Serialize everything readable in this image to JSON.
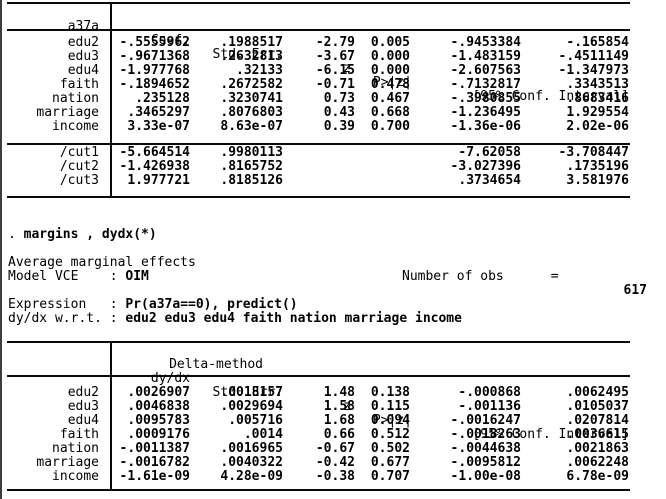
{
  "accent_colors": {
    "text": "#000000",
    "background": "#ffffff",
    "rule": "#0a0a0a",
    "window_border": "#3d3d3d"
  },
  "table1": {
    "depvar": "a37a",
    "col_headers": {
      "coef": "Coef.",
      "se": "Std. Err.",
      "z": "z",
      "p": "P>|z|",
      "ci": "[95% Conf. Interval]"
    },
    "rows": [
      {
        "label": "edu2",
        "coef": "-.5555962",
        "se": ".1988517",
        "z": "-2.79",
        "p": "0.005",
        "lo": "-.9453384",
        "hi": "-.165854"
      },
      {
        "label": "edu3",
        "coef": "-.9671368",
        "se": ".2632813",
        "z": "-3.67",
        "p": "0.000",
        "lo": "-1.483159",
        "hi": "-.4511149"
      },
      {
        "label": "edu4",
        "coef": "-1.977768",
        "se": ".32133",
        "z": "-6.15",
        "p": "0.000",
        "lo": "-2.607563",
        "hi": "-1.347973"
      },
      {
        "label": "faith",
        "coef": "-.1894652",
        "se": ".2672582",
        "z": "-0.71",
        "p": "0.478",
        "lo": "-.7132817",
        "hi": ".3343513"
      },
      {
        "label": "nation",
        "coef": ".235128",
        "se": ".3230741",
        "z": "0.73",
        "p": "0.467",
        "lo": "-.3980855",
        "hi": ".8683416"
      },
      {
        "label": "marriage",
        "coef": ".3465297",
        "se": ".8076803",
        "z": "0.43",
        "p": "0.668",
        "lo": "-1.236495",
        "hi": "1.929554"
      },
      {
        "label": "income",
        "coef": "3.33e-07",
        "se": "8.63e-07",
        "z": "0.39",
        "p": "0.700",
        "lo": "-1.36e-06",
        "hi": "2.02e-06"
      }
    ],
    "cut_rows": [
      {
        "label": "/cut1",
        "coef": "-5.664514",
        "se": ".9980113",
        "lo": "-7.62058",
        "hi": "-3.708447"
      },
      {
        "label": "/cut2",
        "coef": "-1.426938",
        "se": ".8165752",
        "lo": "-3.027396",
        "hi": ".1735196"
      },
      {
        "label": "/cut3",
        "coef": "1.977721",
        "se": ".8185126",
        "lo": ".3734654",
        "hi": "3.581976"
      }
    ]
  },
  "console": {
    "prompt": ". ",
    "command": "margins , dydx(*)",
    "avg_effects_label": "Average marginal effects",
    "obs_label": "Number of obs      =",
    "obs_value": "617",
    "vce_label": "Model VCE    : ",
    "vce_value": "OIM",
    "expression_label": "Expression   : ",
    "expression_value": "Pr(a37a==0), predict()",
    "wrt_label": "dy/dx w.r.t. : ",
    "wrt_value": "edu2 edu3 edu4 faith nation marriage income"
  },
  "table2": {
    "delta_label": "Delta-method",
    "col_headers": {
      "dydx": "dy/dx",
      "se": "Std. Err.",
      "z": "z",
      "p": "P>|z|",
      "ci": "[95% Conf. Interval]"
    },
    "rows": [
      {
        "label": "edu2",
        "coef": ".0026907",
        "se": ".0018157",
        "z": "1.48",
        "p": "0.138",
        "lo": "-.000868",
        "hi": ".0062495"
      },
      {
        "label": "edu3",
        "coef": ".0046838",
        "se": ".0029694",
        "z": "1.58",
        "p": "0.115",
        "lo": "-.001136",
        "hi": ".0105037"
      },
      {
        "label": "edu4",
        "coef": ".0095783",
        "se": ".005716",
        "z": "1.68",
        "p": "0.094",
        "lo": "-.0016247",
        "hi": ".0207814"
      },
      {
        "label": "faith",
        "coef": ".0009176",
        "se": ".0014",
        "z": "0.66",
        "p": "0.512",
        "lo": "-.0018263",
        "hi": ".0036615"
      },
      {
        "label": "nation",
        "coef": "-.0011387",
        "se": ".0016965",
        "z": "-0.67",
        "p": "0.502",
        "lo": "-.0044638",
        "hi": ".0021863"
      },
      {
        "label": "marriage",
        "coef": "-.0016782",
        "se": ".0040322",
        "z": "-0.42",
        "p": "0.677",
        "lo": "-.0095812",
        "hi": ".0062248"
      },
      {
        "label": "income",
        "coef": "-1.61e-09",
        "se": "4.28e-09",
        "z": "-0.38",
        "p": "0.707",
        "lo": "-1.00e-08",
        "hi": "6.78e-09"
      }
    ]
  }
}
